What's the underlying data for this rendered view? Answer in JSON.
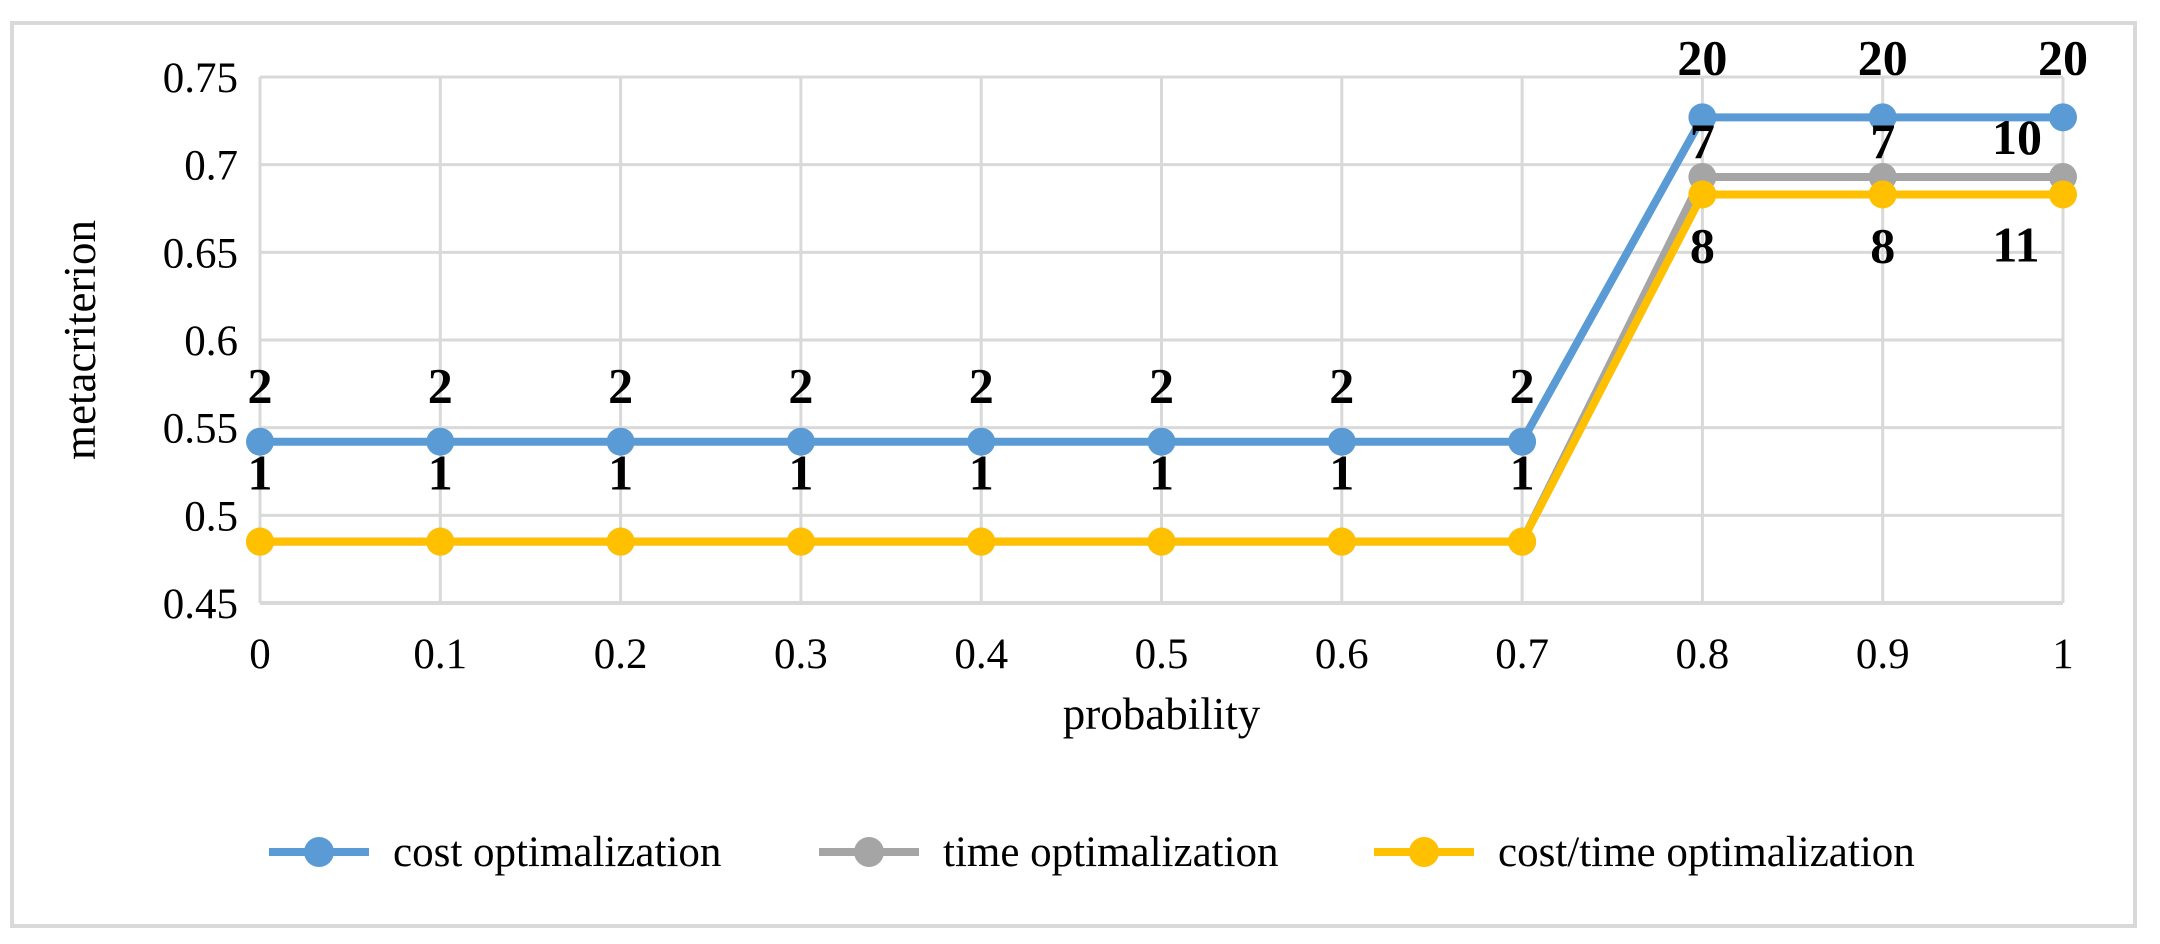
{
  "figure": {
    "background": "#FFFFFF",
    "border_color": "#D9D9D9"
  },
  "chart_data": {
    "type": "line",
    "title": "",
    "xlabel": "probability",
    "ylabel": "metacriterion",
    "x_categories": [
      "0",
      "0.1",
      "0.2",
      "0.3",
      "0.4",
      "0.5",
      "0.6",
      "0.7",
      "0.8",
      "0.9",
      "1"
    ],
    "x_values": [
      0,
      0.1,
      0.2,
      0.3,
      0.4,
      0.5,
      0.6,
      0.7,
      0.8,
      0.9,
      1
    ],
    "y_ticks": [
      0.45,
      0.5,
      0.55,
      0.6,
      0.65,
      0.7,
      0.75
    ],
    "y_tick_labels": [
      "0.45",
      "0.5",
      "0.55",
      "0.6",
      "0.65",
      "0.7",
      "0.75"
    ],
    "ylim": [
      0.45,
      0.75
    ],
    "grid": true,
    "gridline_color": "#D9D9D9",
    "legend_position": "bottom",
    "draw_order": [
      1,
      2,
      0
    ],
    "series": [
      {
        "name": "cost optimalization",
        "color": "#5B9BD5",
        "values": [
          0.542,
          0.542,
          0.542,
          0.542,
          0.542,
          0.542,
          0.542,
          0.542,
          0.727,
          0.727,
          0.727
        ],
        "point_labels": [
          "2",
          "2",
          "2",
          "2",
          "2",
          "2",
          "2",
          "2",
          "20",
          "20",
          "20"
        ],
        "label_offsets": [
          [
            0,
            -56
          ],
          [
            0,
            -56
          ],
          [
            0,
            -56
          ],
          [
            0,
            -56
          ],
          [
            0,
            -56
          ],
          [
            0,
            -56
          ],
          [
            0,
            -56
          ],
          [
            0,
            -56
          ],
          [
            0,
            -60
          ],
          [
            0,
            -60
          ],
          [
            0,
            -60
          ]
        ]
      },
      {
        "name": "time optimalization",
        "color": "#A5A5A5",
        "values": [
          0.485,
          0.485,
          0.485,
          0.485,
          0.485,
          0.485,
          0.485,
          0.485,
          0.693,
          0.693,
          0.693
        ],
        "point_labels": [
          "1",
          "1",
          "1",
          "1",
          "1",
          "1",
          "1",
          "1",
          "7",
          "7",
          "10"
        ],
        "label_offsets": [
          [
            0,
            -69
          ],
          [
            0,
            -69
          ],
          [
            0,
            -69
          ],
          [
            0,
            -69
          ],
          [
            0,
            -69
          ],
          [
            0,
            -69
          ],
          [
            0,
            -69
          ],
          [
            0,
            -69
          ],
          [
            0,
            -36
          ],
          [
            0,
            -36
          ],
          [
            -46,
            -40
          ]
        ]
      },
      {
        "name": "cost/time optimalization",
        "color": "#FFC000",
        "values": [
          0.485,
          0.485,
          0.485,
          0.485,
          0.485,
          0.485,
          0.485,
          0.485,
          0.683,
          0.683,
          0.683
        ],
        "point_labels": [
          null,
          null,
          null,
          null,
          null,
          null,
          null,
          null,
          "8",
          "8",
          "11"
        ],
        "label_offsets": [
          null,
          null,
          null,
          null,
          null,
          null,
          null,
          null,
          [
            0,
            51
          ],
          [
            0,
            51
          ],
          [
            -47,
            50
          ]
        ]
      }
    ]
  }
}
